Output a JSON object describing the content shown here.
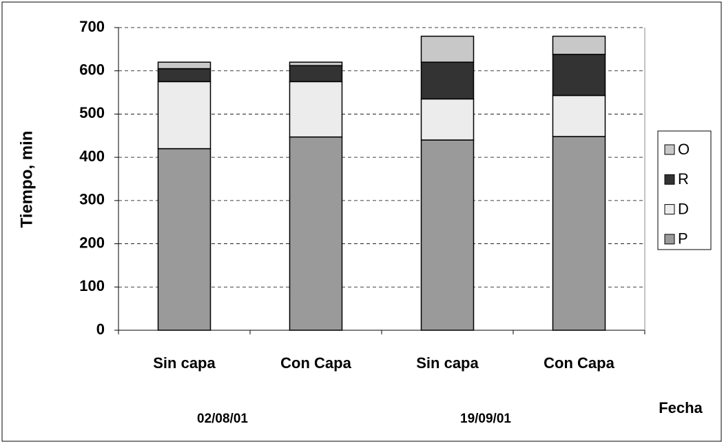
{
  "chart_data": {
    "type": "stacked_bar",
    "xlabel": "Fecha",
    "ylabel": "Tiempo, min",
    "categories": [
      "Sin capa",
      "Con Capa",
      "Sin capa",
      "Con Capa"
    ],
    "group_labels": [
      "02/08/01",
      "19/09/01"
    ],
    "series": [
      {
        "name": "P",
        "color": "#9a9a9a",
        "values": [
          420,
          447,
          440,
          448
        ]
      },
      {
        "name": "D",
        "color": "#ececec",
        "values": [
          155,
          128,
          95,
          95
        ]
      },
      {
        "name": "R",
        "color": "#333333",
        "values": [
          30,
          37,
          85,
          95
        ]
      },
      {
        "name": "O",
        "color": "#c8c8c8",
        "values": [
          15,
          8,
          60,
          42
        ]
      }
    ],
    "ylim": [
      0,
      700
    ],
    "yticks": [
      0,
      100,
      200,
      300,
      400,
      500,
      600,
      700
    ],
    "grid": true,
    "legend": "right"
  }
}
